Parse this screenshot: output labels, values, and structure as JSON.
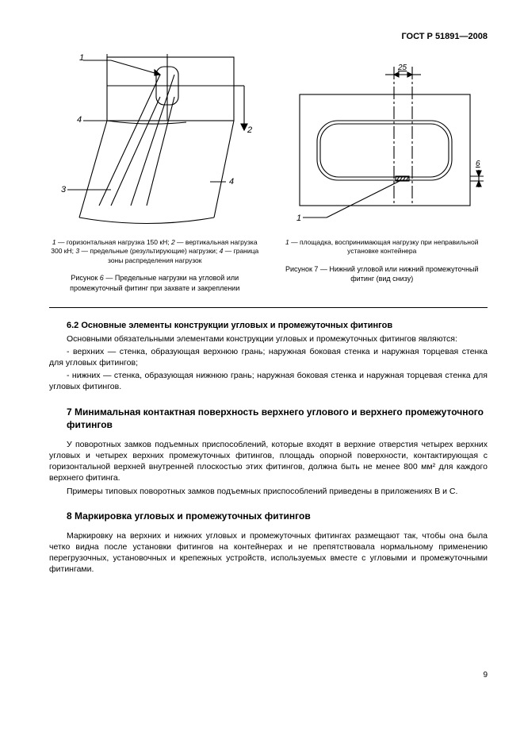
{
  "header": {
    "code": "ГОСТ Р 51891—2008"
  },
  "figure6": {
    "legend": "<i>1</i> — горизонтальная нагрузка 150 кН; <i>2</i> — вертикальная нагрузка 300 кН; <i>3</i> — предельные (результирующие) нагрузки; <i>4</i> — граница зоны распределения нагрузок",
    "caption": "Рисунок <i>6</i> — Предельные нагрузки на угловой или промежуточный фитинг при захвате и закреплении",
    "labels": {
      "n1": "1",
      "n2": "2",
      "n3": "3",
      "n4": "4",
      "n4b": "4"
    },
    "stroke": "#000000",
    "stroke_width": 1.1
  },
  "figure7": {
    "legend": "<i>1</i> — площадка, воспринимающая нагрузку при неправильной установке контейнера",
    "caption": "Рисунок 7 — Нижний угловой или нижний промежуточный фитинг (вид снизу)",
    "labels": {
      "n1": "1",
      "dim25": "25",
      "dim6": "6"
    },
    "stroke": "#000000",
    "stroke_width": 1.1
  },
  "section62": {
    "title": "6.2 Основные элементы конструкции угловых и промежуточных фитингов",
    "para1": "Основными обязательными элементами конструкции угловых и промежуточных фитингов являются:",
    "item1": "- верхних — стенка, образующая верхнюю грань; наружная боковая стенка и наружная торцевая стенка для угловых фитингов;",
    "item2": "- нижних — стенка, образующая нижнюю грань; наружная боковая стенка и наружная торцевая стенка для угловых фитингов."
  },
  "section7": {
    "title": "7 Минимальная контактная поверхность верхнего углового и верхнего промежуточного фитингов",
    "para1": "У поворотных замков подъемных приспособлений, которые входят в верхние отверстия четырех верхних угловых и четырех верхних промежуточных фитингов, площадь опорной поверхности, контактирующая с горизонтальной верхней внутренней плоскостью этих фитингов, должна быть не менее 800 мм² для каждого верхнего фитинга.",
    "para2": "Примеры типовых поворотных замков подъемных приспособлений приведены в приложениях В и С."
  },
  "section8": {
    "title": "8 Маркировка угловых и промежуточных фитингов",
    "para1": "Маркировку на верхних и нижних угловых и промежуточных фитингах размещают так, чтобы она была четко видна после установки фитингов на контейнерах и не препятствовала нормальному применению перегрузочных, установочных и крепежных устройств, используемых вместе с угловыми и промежуточными фитингами."
  },
  "page_number": "9"
}
